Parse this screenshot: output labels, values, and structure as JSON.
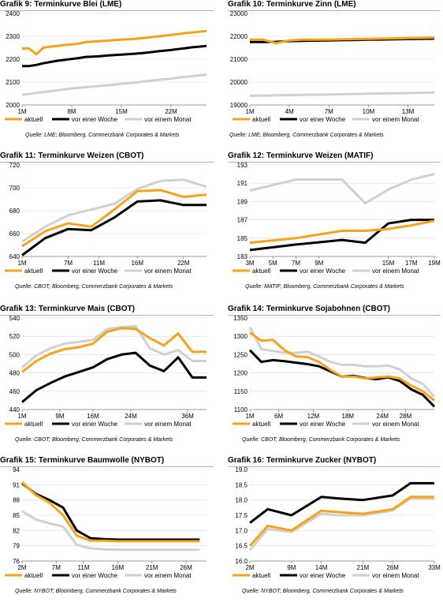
{
  "colors": {
    "aktuell": "#f7a21b",
    "woche": "#000000",
    "monat": "#d0d0d0"
  },
  "legend": {
    "aktuell": "aktuell",
    "woche": "vor einer Woche",
    "monat": "vor einem Monat"
  },
  "chart_data": [
    {
      "type": "line",
      "title": "Grafik 9: Terminkurve Blei (LME)",
      "source": "Quelle: LME; Bloomberg, Commerzbank Corporates & Markets",
      "x": [
        1,
        2,
        3,
        4,
        5,
        6,
        7,
        8,
        9,
        10,
        11,
        12,
        13,
        14,
        15,
        16,
        17,
        18,
        19,
        20,
        21,
        22,
        23,
        24,
        25,
        26,
        27
      ],
      "xticks": [
        1,
        8,
        15,
        22
      ],
      "xticklabels": [
        "1M",
        "8M",
        "15M",
        "22M"
      ],
      "xlim": [
        1,
        27
      ],
      "ylim": [
        2000,
        2400
      ],
      "yticks": [
        2000,
        2100,
        2200,
        2300,
        2400
      ],
      "series": [
        {
          "name": "aktuell",
          "values": [
            2247,
            2247,
            2222,
            2250,
            2255,
            2258,
            2262,
            2265,
            2268,
            2275,
            2277,
            2279,
            2281,
            2283,
            2285,
            2287,
            2289,
            2292,
            2295,
            2299,
            2302,
            2306,
            2310,
            2314,
            2317,
            2320,
            2323
          ]
        },
        {
          "name": "vor einer Woche",
          "values": [
            2170,
            2170,
            2175,
            2182,
            2188,
            2193,
            2197,
            2201,
            2205,
            2210,
            2211,
            2213,
            2216,
            2218,
            2220,
            2222,
            2224,
            2227,
            2230,
            2234,
            2237,
            2240,
            2244,
            2248,
            2252,
            2255,
            2258
          ]
        },
        {
          "name": "vor einem Monat",
          "values": [
            2045,
            2048,
            2052,
            2056,
            2060,
            2064,
            2068,
            2072,
            2075,
            2078,
            2080,
            2083,
            2086,
            2089,
            2092,
            2095,
            2098,
            2102,
            2105,
            2109,
            2112,
            2115,
            2119,
            2123,
            2126,
            2129,
            2132
          ]
        }
      ]
    },
    {
      "type": "line",
      "title": "Grafik 10: Terminkurve Zinn (LME)",
      "source": "Quelle: LME; Bloomberg, Commerzbank Corporates & Markets",
      "x": [
        1,
        2,
        3,
        4,
        5,
        6,
        7,
        8,
        9,
        10,
        11,
        12,
        13,
        14,
        15
      ],
      "xticks": [
        1,
        4,
        7,
        10,
        13
      ],
      "xticklabels": [
        "1M",
        "4M",
        "7M",
        "10M",
        "13M"
      ],
      "xlim": [
        1,
        15
      ],
      "ylim": [
        19000,
        23000
      ],
      "yticks": [
        19000,
        20000,
        21000,
        22000,
        23000
      ],
      "series": [
        {
          "name": "aktuell",
          "values": [
            21850,
            21850,
            21700,
            21820,
            21850,
            21850,
            21860,
            21870,
            21880,
            21890,
            21900,
            21910,
            21920,
            21930,
            21950
          ]
        },
        {
          "name": "vor einer Woche",
          "values": [
            21750,
            21750,
            21760,
            21790,
            21800,
            21810,
            21820,
            21830,
            21840,
            21850,
            21860,
            21870,
            21880,
            21890,
            21900
          ]
        },
        {
          "name": "vor einem Monat",
          "values": [
            19400,
            19410,
            19420,
            19430,
            19440,
            19450,
            19460,
            19470,
            19480,
            19490,
            19500,
            19510,
            19520,
            19530,
            19540
          ]
        }
      ]
    },
    {
      "type": "line",
      "title": "Grafik 11: Terminkurve Weizen (CBOT)",
      "source": "Quelle: CBOT; Bloomberg, Commerzbank Corporates & Markets",
      "x": [
        1,
        4,
        7,
        10,
        13,
        16,
        19,
        22,
        25
      ],
      "xticks": [
        1,
        7,
        11,
        16,
        22
      ],
      "xticklabels": [
        "1M",
        "7M",
        "11M",
        "16M",
        "22M"
      ],
      "xlim": [
        1,
        25
      ],
      "ylim": [
        640,
        720
      ],
      "yticks": [
        640,
        660,
        680,
        700,
        720
      ],
      "series": [
        {
          "name": "aktuell",
          "values": [
            649,
            662,
            669,
            666,
            681,
            697,
            698,
            692,
            694
          ]
        },
        {
          "name": "vor einer Woche",
          "values": [
            641,
            656,
            664,
            663,
            674,
            688,
            689,
            685,
            685
          ]
        },
        {
          "name": "vor einem Monat",
          "values": [
            653,
            666,
            676,
            681,
            686,
            699,
            706,
            707,
            701
          ]
        }
      ]
    },
    {
      "type": "line",
      "title": "Grafik 12: Terminkurve Weizen (MATIF)",
      "source": "Quelle: MATIF; Bloomberg, Commerzbank Corporates & Markets",
      "x": [
        3,
        7,
        11,
        13,
        15,
        17,
        19
      ],
      "xticks": [
        3,
        5,
        7,
        9,
        15,
        17,
        19
      ],
      "xticklabels": [
        "3M",
        "5M",
        "7M",
        "9M",
        "15M",
        "17M",
        "19M"
      ],
      "xlim": [
        3,
        19
      ],
      "ylim": [
        183,
        193
      ],
      "yticks": [
        183,
        185,
        187,
        189,
        191,
        193
      ],
      "series": [
        {
          "name": "aktuell",
          "values": [
            184.5,
            185.0,
            185.8,
            185.8,
            186.0,
            186.4,
            186.9
          ]
        },
        {
          "name": "vor einer Woche",
          "values": [
            183.7,
            184.3,
            184.8,
            184.5,
            186.6,
            187.0,
            187.0
          ]
        },
        {
          "name": "vor einem Monat",
          "values": [
            190.2,
            191.4,
            191.4,
            188.8,
            190.3,
            191.4,
            192.0
          ]
        }
      ]
    },
    {
      "type": "line",
      "title": "Grafik 13: Terminkurve Mais (CBOT)",
      "source": "Quelle: CBOT; Bloomberg, Commerzbank Corporates & Markets",
      "x": [
        1,
        4,
        7,
        10,
        13,
        16,
        19,
        22,
        25,
        28,
        31,
        34,
        37,
        40
      ],
      "xticks": [
        1,
        9,
        16,
        24,
        36
      ],
      "xticklabels": [
        "1M",
        "9M",
        "16M",
        "24M",
        "36M"
      ],
      "xlim": [
        1,
        40
      ],
      "ylim": [
        440,
        540
      ],
      "yticks": [
        440,
        460,
        480,
        500,
        520,
        540
      ],
      "series": [
        {
          "name": "aktuell",
          "values": [
            481,
            493,
            501,
            506,
            508,
            512,
            525,
            529,
            528,
            518,
            510,
            523,
            503,
            503
          ]
        },
        {
          "name": "vor einer Woche",
          "values": [
            448,
            461,
            469,
            476,
            481,
            486,
            495,
            500,
            502,
            488,
            482,
            497,
            475,
            475
          ]
        },
        {
          "name": "vor einem Monat",
          "values": [
            486,
            499,
            507,
            512,
            514,
            516,
            528,
            530,
            531,
            507,
            500,
            505,
            493,
            493
          ]
        }
      ]
    },
    {
      "type": "line",
      "title": "Grafik 14: Terminkurve Sojabohnen (CBOT)",
      "source": "Quelle: CBOT; Bloomberg, Commerzbank Corporates & Markets",
      "x": [
        1,
        3,
        5,
        7,
        9,
        11,
        13,
        15,
        17,
        19,
        21,
        23,
        25,
        27,
        29,
        31,
        33
      ],
      "xticks": [
        1,
        6,
        12,
        18,
        24,
        28
      ],
      "xticklabels": [
        "1M",
        "6M",
        "12M",
        "18M",
        "24M",
        "28M"
      ],
      "xlim": [
        1,
        33
      ],
      "ylim": [
        1100,
        1350
      ],
      "yticks": [
        1100,
        1150,
        1200,
        1250,
        1300,
        1350
      ],
      "series": [
        {
          "name": "aktuell",
          "values": [
            1310,
            1288,
            1290,
            1262,
            1245,
            1243,
            1230,
            1208,
            1190,
            1190,
            1185,
            1188,
            1190,
            1185,
            1165,
            1150,
            1125
          ]
        },
        {
          "name": "vor einer Woche",
          "values": [
            1262,
            1230,
            1235,
            1232,
            1228,
            1224,
            1218,
            1204,
            1190,
            1192,
            1186,
            1183,
            1188,
            1178,
            1155,
            1140,
            1108
          ]
        },
        {
          "name": "vor einem Monat",
          "values": [
            1325,
            1265,
            1260,
            1255,
            1255,
            1258,
            1245,
            1230,
            1222,
            1222,
            1218,
            1218,
            1220,
            1210,
            1185,
            1170,
            1135
          ]
        }
      ]
    },
    {
      "type": "line",
      "title": "Grafik 15: Terminkurve Baumwolle (NYBOT)",
      "source": "Quelle: NYBOT; Bloomberg, Commerzbank Corporates & Markets",
      "x": [
        2,
        4,
        6,
        8,
        10,
        12,
        14,
        16,
        18,
        20,
        22,
        24,
        26,
        28
      ],
      "xticks": [
        2,
        7,
        11,
        16,
        21,
        26
      ],
      "xticklabels": [
        "2M",
        "7M",
        "11M",
        "16M",
        "21M",
        "26M"
      ],
      "xlim": [
        2,
        29
      ],
      "ylim": [
        76,
        94
      ],
      "yticks": [
        76,
        79,
        82,
        85,
        88,
        91,
        94
      ],
      "series": [
        {
          "name": "aktuell",
          "values": [
            91.5,
            89.0,
            87.5,
            85.0,
            81.0,
            80.0,
            80.0,
            79.9,
            79.9,
            79.9,
            79.9,
            79.9,
            79.9,
            79.9
          ]
        },
        {
          "name": "vor einer Woche",
          "values": [
            91.3,
            89.2,
            88.0,
            86.5,
            82.0,
            80.5,
            80.3,
            80.2,
            80.2,
            80.2,
            80.2,
            80.2,
            80.2,
            80.2
          ]
        },
        {
          "name": "vor einem Monat",
          "values": [
            85.8,
            84.2,
            83.4,
            82.8,
            79.2,
            78.5,
            78.3,
            78.2,
            78.2,
            78.2,
            78.2,
            78.2,
            78.2,
            78.2
          ]
        }
      ]
    },
    {
      "type": "line",
      "title": "Grafik 16: Terminkurve Zucker (NYBOT)",
      "source": "Quelle: NYBOT; Bloomberg, Commerzbank Corporates & Markets",
      "x": [
        2,
        5,
        9,
        14,
        17,
        21,
        26,
        29,
        33
      ],
      "xticks": [
        2,
        9,
        14,
        21,
        26,
        33
      ],
      "xticklabels": [
        "2M",
        "9M",
        "14M",
        "21M",
        "26M",
        "33M"
      ],
      "xlim": [
        2,
        33
      ],
      "ylim": [
        16.0,
        19.0
      ],
      "yticks": [
        16.0,
        16.5,
        17.0,
        17.5,
        18.0,
        18.5,
        19.0
      ],
      "series": [
        {
          "name": "aktuell",
          "values": [
            16.5,
            17.15,
            17.0,
            17.65,
            17.6,
            17.55,
            17.7,
            18.1,
            18.1
          ]
        },
        {
          "name": "vor einer Woche",
          "values": [
            17.25,
            17.7,
            17.5,
            18.1,
            18.05,
            18.0,
            18.15,
            18.55,
            18.55
          ]
        },
        {
          "name": "vor einem Monat",
          "values": [
            16.35,
            17.05,
            16.95,
            17.55,
            17.5,
            17.5,
            17.65,
            18.05,
            18.05
          ]
        }
      ]
    }
  ]
}
